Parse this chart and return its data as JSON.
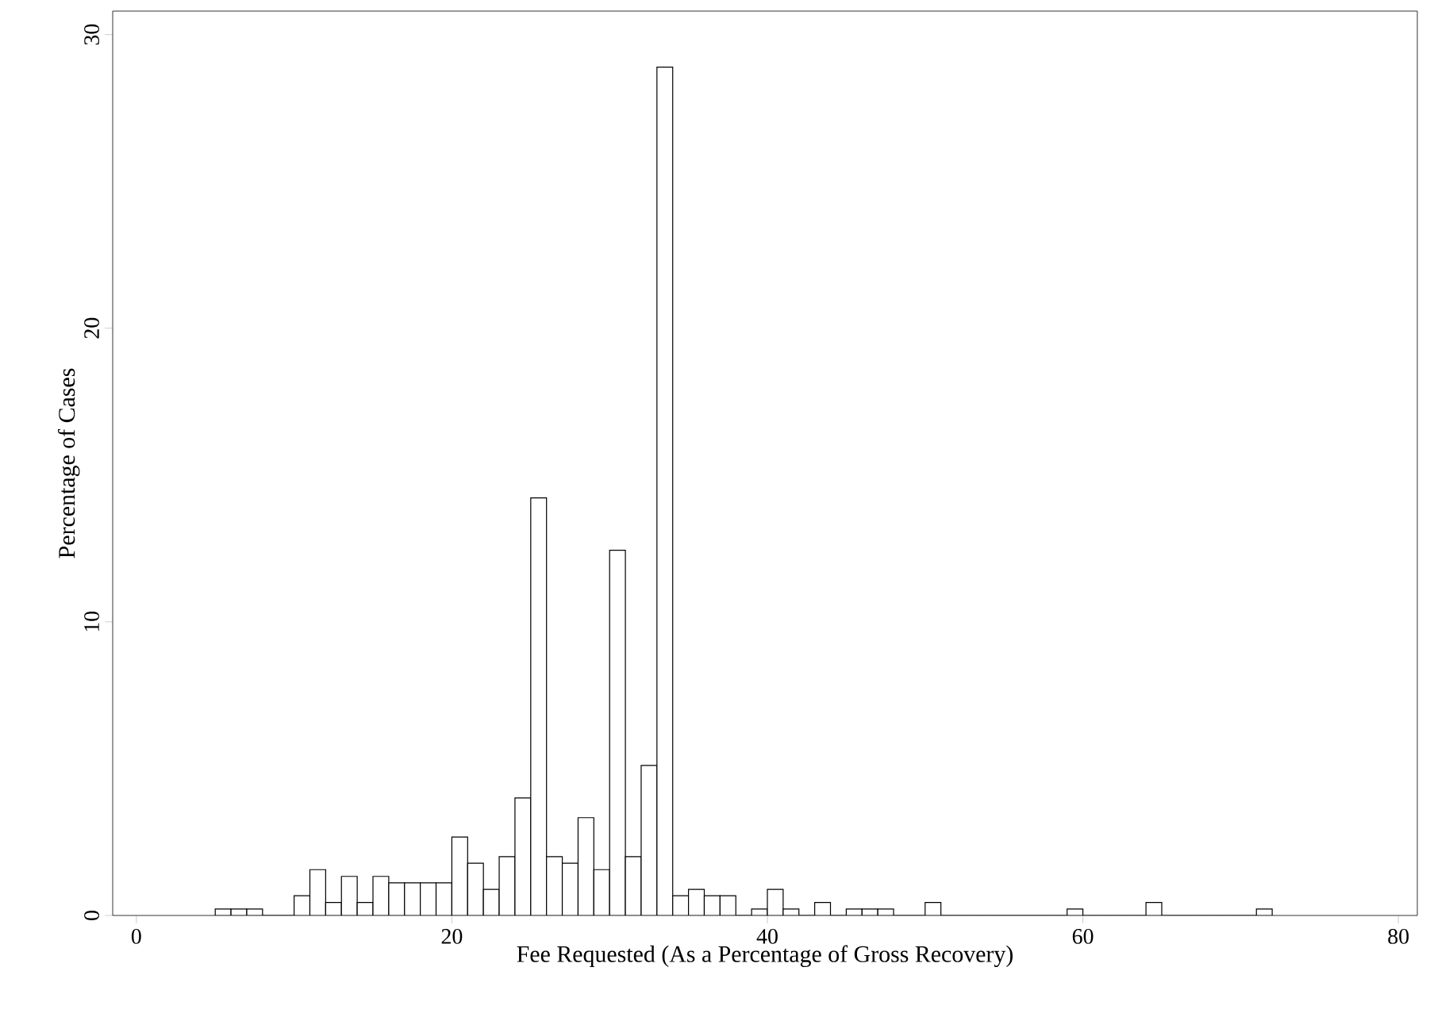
{
  "chart_data": {
    "type": "histogram",
    "xlabel": "Fee Requested (As a Percentage of Gross Recovery)",
    "ylabel": "Percentage of Cases",
    "bins": [
      5,
      6,
      7,
      8,
      9,
      10,
      11,
      12,
      13,
      14,
      15,
      16,
      17,
      18,
      19,
      20,
      21,
      22,
      23,
      24,
      25,
      26,
      27,
      28,
      29,
      30,
      31,
      32,
      33,
      34,
      35,
      36,
      37,
      38,
      39,
      40,
      41,
      42,
      43,
      44,
      45,
      46,
      47,
      48,
      49,
      50,
      51,
      52,
      53,
      54,
      55,
      56,
      57,
      58,
      59,
      60,
      61,
      62,
      63,
      64,
      65,
      66,
      67,
      68,
      69,
      70,
      71,
      72
    ],
    "values": [
      0.22,
      0.22,
      0.22,
      0,
      0,
      0.67,
      1.56,
      0.44,
      1.33,
      0.44,
      1.33,
      1.11,
      1.11,
      1.11,
      1.11,
      2.67,
      1.78,
      0.89,
      2,
      4,
      14.22,
      2,
      1.78,
      3.33,
      1.56,
      12.44,
      2,
      5.11,
      28.89,
      0.67,
      0.89,
      0.67,
      0.67,
      0,
      0.22,
      0.89,
      0.22,
      0,
      0.44,
      0,
      0.22,
      0.22,
      0.22,
      0,
      0,
      0.44,
      0,
      0,
      0,
      0,
      0,
      0,
      0,
      0,
      0.22,
      0,
      0,
      0,
      0,
      0.44,
      0,
      0,
      0,
      0,
      0,
      0,
      0.22
    ],
    "color": "#ffffff",
    "xlim": [
      -1.5,
      81.2
    ],
    "ylim": [
      0,
      30.8
    ],
    "xticks": [
      0,
      20,
      40,
      60,
      80
    ],
    "yticks": [
      0,
      10,
      20,
      30
    ],
    "grid": false
  }
}
